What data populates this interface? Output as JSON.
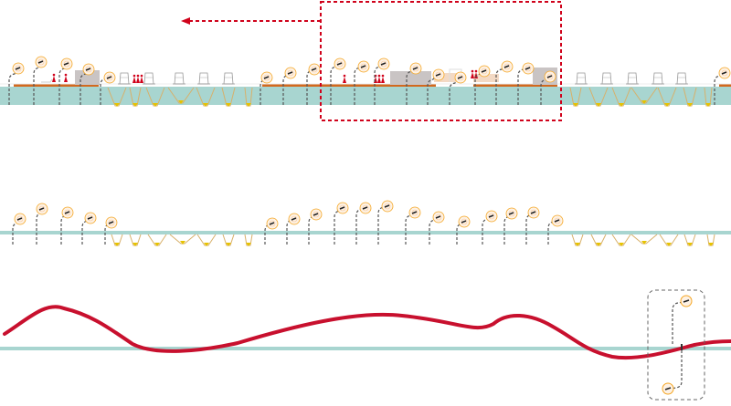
{
  "diagram": {
    "colors": {
      "water": "#a8d5d0",
      "ground": "#d2691e",
      "lamp_glow": "#f5a623",
      "highlight_frame": "#d0021b",
      "route_curve": "#c8102e",
      "pole": "#555555",
      "building": "#c9c4c4",
      "terrace": "#f3d9c4",
      "funnel": "#d8b06a"
    },
    "icons": [
      "street-lamp-icon",
      "kiosk-icon",
      "people-icon",
      "funnel-light-icon",
      "arrow-left-icon"
    ],
    "sections": [
      "plan-detail",
      "lamp-layout",
      "route-curve"
    ]
  }
}
